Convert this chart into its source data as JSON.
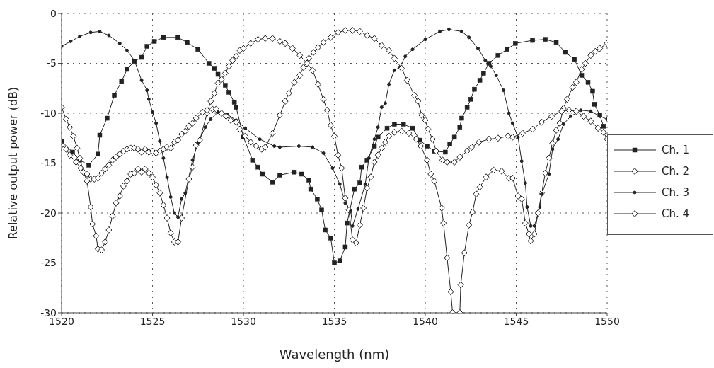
{
  "chart_data": {
    "type": "line",
    "xlabel": "Wavelength  (nm)",
    "ylabel": "Relative output power (dB)",
    "xlim": [
      1520,
      1550
    ],
    "xticks": [
      1520,
      1525,
      1530,
      1535,
      1540,
      1545,
      1550
    ],
    "ylim": [
      -30,
      0
    ],
    "yticks": [
      -30,
      -25,
      -20,
      -15,
      -10,
      -5,
      0
    ],
    "grid": true,
    "legend": "right",
    "series": [
      {
        "name": "Ch. 1",
        "color": "#222222",
        "marker": "square",
        "x": [
          1520.0,
          1520.6,
          1521.0,
          1521.5,
          1522.0,
          1522.1,
          1522.5,
          1522.9,
          1523.3,
          1523.6,
          1524.0,
          1524.4,
          1524.7,
          1525.1,
          1525.6,
          1526.4,
          1526.9,
          1527.5,
          1528.1,
          1528.4,
          1528.6,
          1529.0,
          1529.2,
          1529.5,
          1529.6,
          1530.0,
          1530.5,
          1530.8,
          1531.05,
          1531.6,
          1532.0,
          1532.8,
          1533.2,
          1533.6,
          1533.7,
          1534.06,
          1534.3,
          1534.5,
          1534.8,
          1535.0,
          1535.3,
          1535.6,
          1535.7,
          1536.1,
          1536.4,
          1536.5,
          1536.8,
          1537.2,
          1537.4,
          1537.9,
          1538.3,
          1538.8,
          1539.3,
          1539.7,
          1540.1,
          1540.5,
          1541.1,
          1541.35,
          1541.6,
          1541.9,
          1542.0,
          1542.3,
          1542.5,
          1542.7,
          1543.0,
          1543.2,
          1543.5,
          1544.0,
          1544.5,
          1544.95,
          1545.9,
          1546.6,
          1547.2,
          1547.7,
          1548.2,
          1548.6,
          1548.95,
          1549.2,
          1549.3,
          1549.6,
          1549.8
        ],
        "values": [
          -12.8,
          -13.9,
          -14.7,
          -15.2,
          -14.1,
          -12.2,
          -10.5,
          -8.2,
          -6.8,
          -5.6,
          -4.8,
          -4.4,
          -3.3,
          -2.8,
          -2.4,
          -2.4,
          -2.9,
          -3.6,
          -5.0,
          -5.5,
          -6.1,
          -7.2,
          -7.9,
          -8.9,
          -9.4,
          -12.4,
          -14.7,
          -15.4,
          -16.1,
          -16.9,
          -16.2,
          -15.9,
          -16.1,
          -16.7,
          -17.6,
          -18.6,
          -19.7,
          -21.7,
          -22.5,
          -25.0,
          -24.8,
          -23.4,
          -21.0,
          -17.6,
          -17.0,
          -15.4,
          -14.7,
          -13.3,
          -12.4,
          -11.5,
          -11.1,
          -11.1,
          -11.5,
          -12.7,
          -13.3,
          -13.8,
          -13.9,
          -13.1,
          -12.4,
          -11.4,
          -10.5,
          -9.4,
          -8.6,
          -7.6,
          -6.7,
          -6.0,
          -5.0,
          -4.2,
          -3.6,
          -3.0,
          -2.7,
          -2.6,
          -2.9,
          -3.9,
          -4.6,
          -6.2,
          -6.9,
          -7.8,
          -9.1,
          -10.2,
          -11.3
        ]
      },
      {
        "name": "Ch. 2",
        "color": "#222222",
        "marker": "diamond",
        "x": [
          1520.0,
          1520.25,
          1520.45,
          1520.65,
          1520.85,
          1521.0,
          1521.2,
          1521.4,
          1521.6,
          1521.7,
          1521.9,
          1522.0,
          1522.2,
          1522.4,
          1522.6,
          1522.8,
          1523.0,
          1523.2,
          1523.4,
          1523.6,
          1523.8,
          1524.0,
          1524.2,
          1524.4,
          1524.6,
          1524.8,
          1525.0,
          1525.2,
          1525.4,
          1525.6,
          1525.8,
          1526.0,
          1526.2,
          1526.4,
          1526.6,
          1527.0,
          1527.2,
          1527.4,
          1527.6,
          1528.0,
          1528.2,
          1528.4,
          1528.6,
          1528.8,
          1529.0,
          1529.2,
          1529.4,
          1529.6,
          1529.8,
          1530.0,
          1530.4,
          1530.8,
          1531.2,
          1531.6,
          1532.0,
          1532.3,
          1532.7,
          1533.1,
          1533.5,
          1533.8,
          1534.1,
          1534.4,
          1534.6,
          1534.8,
          1535.0,
          1535.2,
          1535.4,
          1535.6,
          1535.8,
          1536.0,
          1536.2,
          1536.4,
          1536.6,
          1536.8,
          1537.0,
          1537.2,
          1537.4,
          1537.6,
          1537.8,
          1538.0,
          1538.3,
          1538.7,
          1539.1,
          1539.5,
          1539.75,
          1540.1,
          1540.3,
          1540.5,
          1540.9,
          1541.0,
          1541.2,
          1541.4,
          1541.5,
          1541.9,
          1541.95,
          1542.15,
          1542.4,
          1542.6,
          1542.8,
          1543.0,
          1543.35,
          1543.75,
          1544.2,
          1544.6,
          1544.8,
          1545.1,
          1545.3,
          1545.5,
          1545.7,
          1545.8,
          1546.0,
          1546.2,
          1546.4,
          1546.6,
          1546.8,
          1547.0,
          1547.2,
          1547.4,
          1547.6,
          1547.8,
          1548.1,
          1548.3,
          1548.6,
          1548.8,
          1549.1,
          1549.35,
          1549.6,
          1550.0
        ],
        "values": [
          -9.4,
          -10.6,
          -11.4,
          -12.3,
          -13.5,
          -14.5,
          -15.9,
          -16.8,
          -19.4,
          -21.1,
          -22.3,
          -23.6,
          -23.7,
          -22.9,
          -21.7,
          -20.3,
          -19.0,
          -18.3,
          -17.3,
          -16.8,
          -16.1,
          -16.0,
          -15.6,
          -15.9,
          -15.6,
          -16.0,
          -16.4,
          -17.2,
          -18.0,
          -19.2,
          -20.5,
          -22.0,
          -22.9,
          -22.9,
          -20.5,
          -16.6,
          -15.4,
          -13.2,
          -12.7,
          -10.0,
          -8.8,
          -8.0,
          -7.0,
          -6.6,
          -6.0,
          -5.3,
          -4.7,
          -4.3,
          -3.7,
          -3.5,
          -3.0,
          -2.6,
          -2.5,
          -2.5,
          -2.8,
          -3.0,
          -3.5,
          -4.2,
          -5.0,
          -5.7,
          -7.1,
          -8.6,
          -9.7,
          -11.2,
          -12.3,
          -14.2,
          -15.5,
          -18.5,
          -19.7,
          -22.7,
          -23.0,
          -21.2,
          -19.5,
          -17.5,
          -16.4,
          -14.9,
          -14.2,
          -13.5,
          -12.9,
          -12.3,
          -11.9,
          -11.8,
          -12.0,
          -12.6,
          -13.3,
          -14.7,
          -16.1,
          -16.8,
          -19.5,
          -21.0,
          -24.5,
          -27.9,
          -30,
          -30,
          -27.2,
          -24.0,
          -21.2,
          -19.9,
          -18.1,
          -17.4,
          -16.4,
          -15.7,
          -15.8,
          -16.5,
          -16.5,
          -18.3,
          -18.6,
          -21.0,
          -22.1,
          -22.8,
          -22.1,
          -20.0,
          -18.0,
          -16.0,
          -14.5,
          -13.0,
          -11.7,
          -11.0,
          -9.5,
          -8.6,
          -7.4,
          -6.9,
          -5.6,
          -5.0,
          -4.2,
          -3.8,
          -3.5,
          -3.0
        ]
      },
      {
        "name": "Ch. 3",
        "color": "#222222",
        "marker": "circle",
        "x": [
          1520.0,
          1520.5,
          1521.0,
          1521.6,
          1522.1,
          1522.6,
          1523.2,
          1523.6,
          1524.0,
          1524.4,
          1524.7,
          1524.8,
          1525.0,
          1525.2,
          1525.4,
          1525.6,
          1525.8,
          1526.0,
          1526.2,
          1526.4,
          1526.6,
          1526.8,
          1527.2,
          1527.5,
          1527.9,
          1528.2,
          1528.6,
          1529.1,
          1529.6,
          1530.1,
          1530.9,
          1531.7,
          1532.0,
          1533.05,
          1533.8,
          1534.4,
          1534.9,
          1535.3,
          1535.6,
          1535.9,
          1536.0,
          1536.3,
          1536.7,
          1536.9,
          1537.2,
          1537.4,
          1537.6,
          1537.8,
          1538.0,
          1538.3,
          1538.6,
          1538.9,
          1539.3,
          1540.0,
          1540.8,
          1541.3,
          1542.0,
          1542.4,
          1542.9,
          1543.3,
          1543.6,
          1543.9,
          1544.3,
          1544.6,
          1544.8,
          1545.1,
          1545.3,
          1545.5,
          1545.6,
          1545.8,
          1546.0,
          1546.3,
          1546.4,
          1546.8,
          1547.0,
          1547.3,
          1547.6,
          1548.0,
          1548.55,
          1549.1,
          1549.6,
          1550.0
        ],
        "values": [
          -3.3,
          -2.8,
          -2.3,
          -1.9,
          -1.8,
          -2.2,
          -3.0,
          -3.7,
          -4.7,
          -6.7,
          -7.7,
          -8.6,
          -9.9,
          -11.0,
          -12.8,
          -14.5,
          -16.4,
          -18.4,
          -20.0,
          -20.4,
          -18.6,
          -18.0,
          -14.7,
          -13.0,
          -11.4,
          -10.6,
          -9.9,
          -10.1,
          -10.7,
          -11.5,
          -12.6,
          -13.3,
          -13.4,
          -13.3,
          -13.4,
          -14.0,
          -15.5,
          -17.1,
          -19.0,
          -19.8,
          -21.3,
          -19.6,
          -17.1,
          -14.5,
          -12.6,
          -11.4,
          -9.4,
          -9.0,
          -7.1,
          -5.7,
          -5.4,
          -4.3,
          -3.6,
          -2.6,
          -1.8,
          -1.6,
          -1.8,
          -2.4,
          -3.5,
          -4.7,
          -5.3,
          -6.2,
          -7.7,
          -10.0,
          -11.0,
          -12.4,
          -14.8,
          -17.0,
          -19.4,
          -21.3,
          -21.3,
          -19.4,
          -18.1,
          -16.1,
          -13.6,
          -12.6,
          -11.1,
          -10.3,
          -9.7,
          -9.8,
          -10.3,
          -10.6
        ]
      },
      {
        "name": "Ch. 4",
        "color": "#222222",
        "marker": "diamond",
        "x": [
          1520.0,
          1520.25,
          1520.45,
          1520.8,
          1521.05,
          1521.4,
          1521.6,
          1521.8,
          1522.0,
          1522.2,
          1522.4,
          1522.6,
          1522.8,
          1523.0,
          1523.2,
          1523.4,
          1523.6,
          1523.8,
          1524.0,
          1524.2,
          1524.4,
          1524.6,
          1524.8,
          1525.0,
          1525.2,
          1525.4,
          1525.6,
          1525.8,
          1526.0,
          1526.2,
          1526.4,
          1526.6,
          1526.8,
          1527.0,
          1527.2,
          1527.4,
          1527.75,
          1528.0,
          1528.3,
          1528.5,
          1528.8,
          1529.05,
          1529.3,
          1529.6,
          1529.8,
          1530.1,
          1530.4,
          1530.7,
          1531.0,
          1531.2,
          1531.6,
          1532.0,
          1532.3,
          1532.5,
          1532.8,
          1533.1,
          1533.3,
          1533.6,
          1533.85,
          1534.1,
          1534.4,
          1534.8,
          1535.2,
          1535.6,
          1536.0,
          1536.4,
          1536.8,
          1537.2,
          1537.6,
          1538.0,
          1538.3,
          1538.7,
          1539.0,
          1539.4,
          1539.6,
          1539.8,
          1540.0,
          1540.15,
          1540.4,
          1540.6,
          1540.95,
          1541.2,
          1541.6,
          1541.9,
          1542.3,
          1542.55,
          1542.95,
          1543.5,
          1544.0,
          1544.55,
          1544.8,
          1545.35,
          1545.9,
          1546.4,
          1546.95,
          1547.5,
          1547.9,
          1548.3,
          1548.7,
          1549.1,
          1549.5,
          1549.8,
          1550.0
        ],
        "values": [
          -13.2,
          -13.6,
          -14.2,
          -14.9,
          -15.5,
          -16.1,
          -16.6,
          -16.6,
          -16.5,
          -16.0,
          -15.6,
          -15.2,
          -14.7,
          -14.4,
          -14.1,
          -13.8,
          -13.6,
          -13.5,
          -13.5,
          -13.6,
          -13.9,
          -13.6,
          -13.9,
          -13.8,
          -14.0,
          -13.8,
          -13.6,
          -13.4,
          -13.5,
          -12.9,
          -12.7,
          -12.1,
          -11.8,
          -11.3,
          -11.0,
          -10.5,
          -9.9,
          -9.7,
          -9.6,
          -9.6,
          -10.0,
          -10.3,
          -10.7,
          -10.9,
          -11.6,
          -12.3,
          -12.9,
          -13.3,
          -13.6,
          -13.4,
          -12.0,
          -10.2,
          -8.8,
          -8.0,
          -6.9,
          -6.2,
          -5.4,
          -4.5,
          -3.9,
          -3.4,
          -2.9,
          -2.4,
          -1.9,
          -1.7,
          -1.7,
          -1.8,
          -2.2,
          -2.5,
          -3.2,
          -3.7,
          -4.5,
          -5.5,
          -6.7,
          -8.2,
          -8.8,
          -10.2,
          -10.7,
          -11.6,
          -12.6,
          -13.8,
          -14.7,
          -14.9,
          -14.9,
          -14.4,
          -13.8,
          -13.4,
          -12.9,
          -12.6,
          -12.5,
          -12.3,
          -12.4,
          -12.0,
          -11.6,
          -10.9,
          -10.3,
          -9.8,
          -9.7,
          -9.8,
          -10.3,
          -10.8,
          -11.5,
          -11.9,
          -12.6
        ]
      }
    ]
  }
}
